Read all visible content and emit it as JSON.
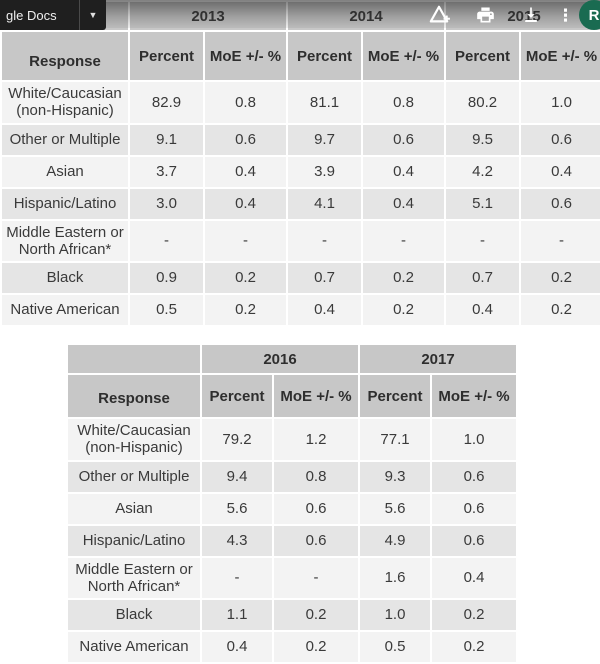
{
  "toolbar": {
    "title": "gle Docs",
    "dropdown_caret": "▼",
    "overflow_glyph": "⋮",
    "avatar_letter": "R",
    "avatar_color": "#1a6b51",
    "icon_names": [
      "drive-add-icon",
      "print-icon",
      "download-icon",
      "overflow-menu-icon"
    ]
  },
  "colors": {
    "header_gray": "#c7c7c7",
    "row_light": "#f3f3f3",
    "row_dark": "#e5e5e5",
    "text": "#3a3a3a"
  },
  "table1": {
    "year_headers": [
      "2013",
      "2014",
      "2015"
    ],
    "col_headers": [
      "Response",
      "Percent",
      "MoE +/- %",
      "Percent",
      "MoE +/- %",
      "Percent",
      "MoE +/- %"
    ],
    "rows": [
      {
        "label": "White/Caucasian (non-Hispanic)",
        "values": [
          "82.9",
          "0.8",
          "81.1",
          "0.8",
          "80.2",
          "1.0"
        ]
      },
      {
        "label": "Other or Multiple",
        "values": [
          "9.1",
          "0.6",
          "9.7",
          "0.6",
          "9.5",
          "0.6"
        ]
      },
      {
        "label": "Asian",
        "values": [
          "3.7",
          "0.4",
          "3.9",
          "0.4",
          "4.2",
          "0.4"
        ]
      },
      {
        "label": "Hispanic/Latino",
        "values": [
          "3.0",
          "0.4",
          "4.1",
          "0.4",
          "5.1",
          "0.6"
        ]
      },
      {
        "label": "Middle Eastern or North African*",
        "values": [
          "-",
          "-",
          "-",
          "-",
          "-",
          "-"
        ]
      },
      {
        "label": "Black",
        "values": [
          "0.9",
          "0.2",
          "0.7",
          "0.2",
          "0.7",
          "0.2"
        ]
      },
      {
        "label": "Native American",
        "values": [
          "0.5",
          "0.2",
          "0.4",
          "0.2",
          "0.4",
          "0.2"
        ]
      }
    ]
  },
  "table2": {
    "year_headers": [
      "2016",
      "2017"
    ],
    "col_headers": [
      "Response",
      "Percent",
      "MoE +/- %",
      "Percent",
      "MoE +/- %"
    ],
    "rows": [
      {
        "label": "White/Caucasian (non-Hispanic)",
        "values": [
          "79.2",
          "1.2",
          "77.1",
          "1.0"
        ]
      },
      {
        "label": "Other or Multiple",
        "values": [
          "9.4",
          "0.8",
          "9.3",
          "0.6"
        ]
      },
      {
        "label": "Asian",
        "values": [
          "5.6",
          "0.6",
          "5.6",
          "0.6"
        ]
      },
      {
        "label": "Hispanic/Latino",
        "values": [
          "4.3",
          "0.6",
          "4.9",
          "0.6"
        ]
      },
      {
        "label": "Middle Eastern or North African*",
        "values": [
          "-",
          "-",
          "1.6",
          "0.4"
        ]
      },
      {
        "label": "Black",
        "values": [
          "1.1",
          "0.2",
          "1.0",
          "0.2"
        ]
      },
      {
        "label": "Native American",
        "values": [
          "0.4",
          "0.2",
          "0.5",
          "0.2"
        ]
      }
    ]
  }
}
